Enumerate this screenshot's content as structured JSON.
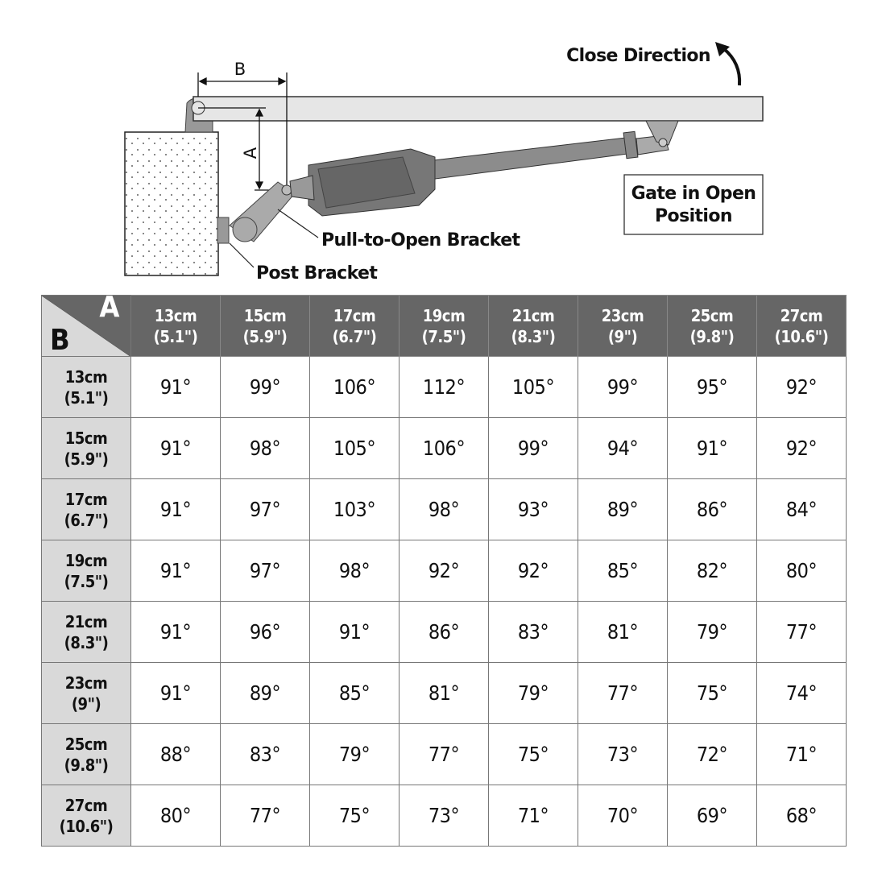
{
  "diagram": {
    "close_direction": "Close Direction",
    "gate_status_line1": "Gate in Open",
    "gate_status_line2": "Position",
    "pull_to_open_bracket": "Pull-to-Open Bracket",
    "post_bracket": "Post Bracket",
    "dimension_a": "A",
    "dimension_b": "B"
  },
  "table": {
    "corner_a": "A",
    "corner_b": "B",
    "columns": [
      [
        "13cm",
        "(5.1\")"
      ],
      [
        "15cm",
        "(5.9\")"
      ],
      [
        "17cm",
        "(6.7\")"
      ],
      [
        "19cm",
        "(7.5\")"
      ],
      [
        "21cm",
        "(8.3\")"
      ],
      [
        "23cm",
        "(9\")"
      ],
      [
        "25cm",
        "(9.8\")"
      ],
      [
        "27cm",
        "(10.6\")"
      ]
    ],
    "rows": [
      {
        "label": [
          "13cm",
          "(5.1\")"
        ],
        "values": [
          "91°",
          "99°",
          "106°",
          "112°",
          "105°",
          "99°",
          "95°",
          "92°"
        ]
      },
      {
        "label": [
          "15cm",
          "(5.9\")"
        ],
        "values": [
          "91°",
          "98°",
          "105°",
          "106°",
          "99°",
          "94°",
          "91°",
          "92°"
        ]
      },
      {
        "label": [
          "17cm",
          "(6.7\")"
        ],
        "values": [
          "91°",
          "97°",
          "103°",
          "98°",
          "93°",
          "89°",
          "86°",
          "84°"
        ]
      },
      {
        "label": [
          "19cm",
          "(7.5\")"
        ],
        "values": [
          "91°",
          "97°",
          "98°",
          "92°",
          "92°",
          "85°",
          "82°",
          "80°"
        ]
      },
      {
        "label": [
          "21cm",
          "(8.3\")"
        ],
        "values": [
          "91°",
          "96°",
          "91°",
          "86°",
          "83°",
          "81°",
          "79°",
          "77°"
        ]
      },
      {
        "label": [
          "23cm",
          "(9\")"
        ],
        "values": [
          "91°",
          "89°",
          "85°",
          "81°",
          "79°",
          "77°",
          "75°",
          "74°"
        ]
      },
      {
        "label": [
          "25cm",
          "(9.8\")"
        ],
        "values": [
          "88°",
          "83°",
          "79°",
          "77°",
          "75°",
          "73°",
          "72°",
          "71°"
        ]
      },
      {
        "label": [
          "27cm",
          "(10.6\")"
        ],
        "values": [
          "80°",
          "77°",
          "75°",
          "73°",
          "71°",
          "70°",
          "69°",
          "68°"
        ]
      }
    ]
  }
}
